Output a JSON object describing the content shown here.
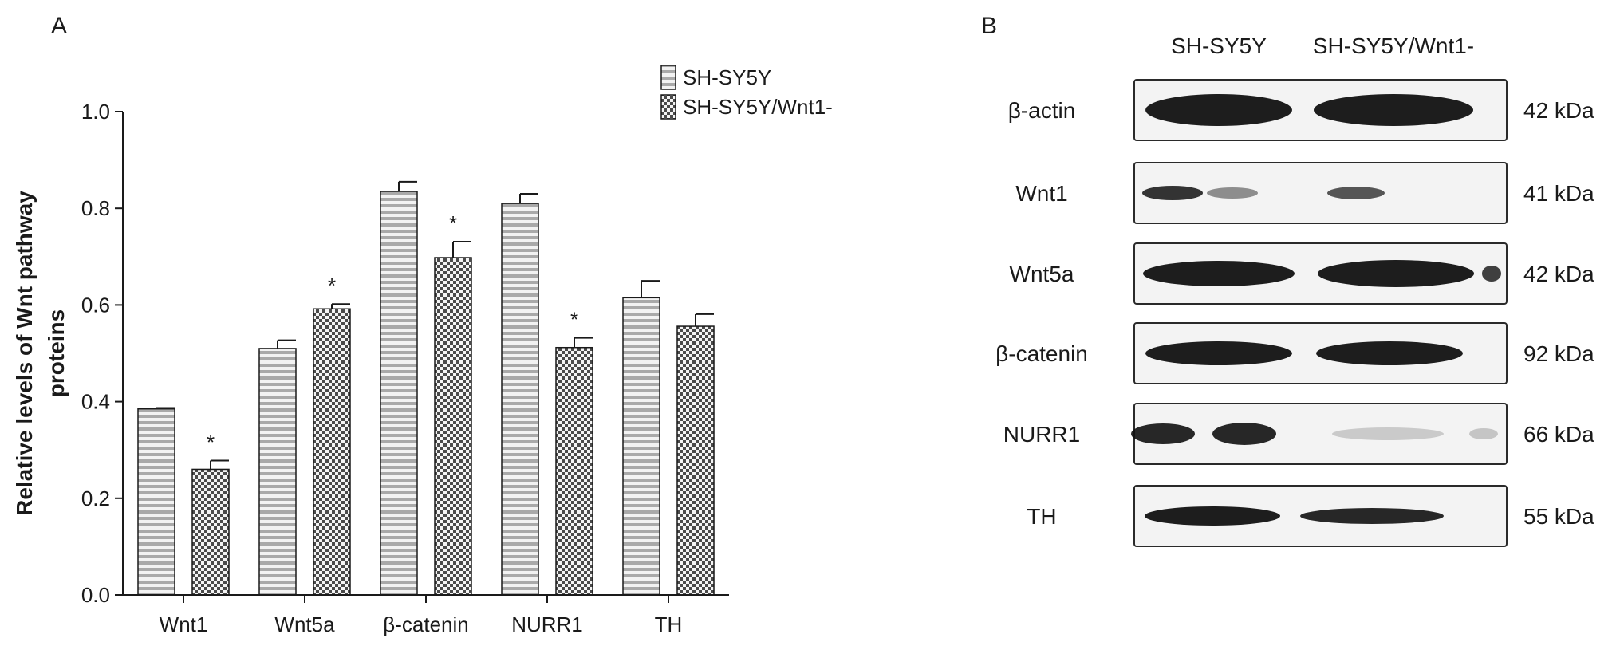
{
  "panel_a_label": "A",
  "panel_b_label": "B",
  "chart_data": {
    "type": "bar",
    "title": "",
    "xlabel": "",
    "ylabel_line1": "Relative levels of Wnt pathway",
    "ylabel_line2": "proteins",
    "ylim": [
      0,
      1.0
    ],
    "yticks": [
      "0.0",
      "0.2",
      "0.4",
      "0.6",
      "0.8",
      "1.0"
    ],
    "categories": [
      "Wnt1",
      "Wnt5a",
      "β-catenin",
      "NURR1",
      "TH"
    ],
    "series": [
      {
        "name": "SH-SY5Y",
        "pattern": "horizontal-stripes",
        "values": [
          0.385,
          0.51,
          0.835,
          0.81,
          0.615
        ],
        "errors": [
          0.002,
          0.017,
          0.02,
          0.02,
          0.035
        ]
      },
      {
        "name": "SH-SY5Y/Wnt1-",
        "pattern": "checker",
        "values": [
          0.26,
          0.592,
          0.698,
          0.512,
          0.556
        ],
        "errors": [
          0.018,
          0.01,
          0.033,
          0.02,
          0.025
        ]
      }
    ],
    "significance": [
      "*",
      "*",
      "*",
      "*",
      ""
    ],
    "legend_position": "top-right",
    "grid": false
  },
  "blot": {
    "columns": [
      "SH-SY5Y",
      "SH-SY5Y/Wnt1-"
    ],
    "rows": [
      {
        "label": "β-actin",
        "size": "42 kDa"
      },
      {
        "label": "Wnt1",
        "size": "41 kDa"
      },
      {
        "label": "Wnt5a",
        "size": "42 kDa"
      },
      {
        "label": "β-catenin",
        "size": "92 kDa"
      },
      {
        "label": "NURR1",
        "size": "66 kDa"
      },
      {
        "label": "TH",
        "size": "55 kDa"
      }
    ]
  }
}
